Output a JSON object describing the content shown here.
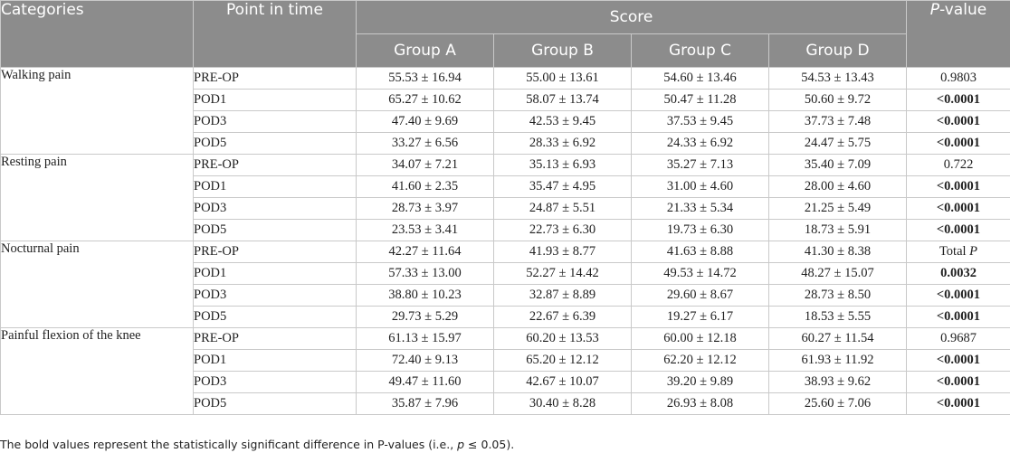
{
  "header": {
    "categories": "Categories",
    "point_in_time": "Point in time",
    "score": "Score",
    "p_value_prefix": "P",
    "p_value_suffix": "-value",
    "groups": [
      "Group A",
      "Group B",
      "Group C",
      "Group D"
    ]
  },
  "sections": [
    {
      "category": "Walking pain",
      "rows": [
        {
          "time": "PRE-OP",
          "a": "55.53 ± 16.94",
          "b": "55.00 ± 13.61",
          "c": "54.60 ± 13.46",
          "d": "54.53 ± 13.43",
          "p": "0.9803",
          "sig": false
        },
        {
          "time": "POD1",
          "a": "65.27 ± 10.62",
          "b": "58.07 ± 13.74",
          "c": "50.47 ± 11.28",
          "d": "50.60 ± 9.72",
          "p": "<0.0001",
          "sig": true
        },
        {
          "time": "POD3",
          "a": "47.40 ± 9.69",
          "b": "42.53 ± 9.45",
          "c": "37.53 ± 9.45",
          "d": "37.73 ± 7.48",
          "p": "<0.0001",
          "sig": true
        },
        {
          "time": "POD5",
          "a": "33.27 ± 6.56",
          "b": "28.33 ± 6.92",
          "c": "24.33 ± 6.92",
          "d": "24.47 ± 5.75",
          "p": "<0.0001",
          "sig": true
        }
      ]
    },
    {
      "category": "Resting pain",
      "rows": [
        {
          "time": "PRE-OP",
          "a": "34.07 ± 7.21",
          "b": "35.13 ± 6.93",
          "c": "35.27 ± 7.13",
          "d": "35.40 ± 7.09",
          "p": "0.722",
          "sig": false
        },
        {
          "time": "POD1",
          "a": "41.60 ± 2.35",
          "b": "35.47 ± 4.95",
          "c": "31.00 ± 4.60",
          "d": "28.00 ± 4.60",
          "p": "<0.0001",
          "sig": true
        },
        {
          "time": "POD3",
          "a": "28.73 ± 3.97",
          "b": "24.87 ± 5.51",
          "c": "21.33 ± 5.34",
          "d": "21.25 ± 5.49",
          "p": "<0.0001",
          "sig": true
        },
        {
          "time": "POD5",
          "a": "23.53 ± 3.41",
          "b": "22.73 ± 6.30",
          "c": "19.73 ± 6.30",
          "d": "18.73 ± 5.91",
          "p": "<0.0001",
          "sig": true
        }
      ]
    },
    {
      "category": "Nocturnal pain",
      "rows": [
        {
          "time": "PRE-OP",
          "a": "42.27 ± 11.64",
          "b": "41.93 ± 8.77",
          "c": "41.63 ± 8.88",
          "d": "41.30 ± 8.38",
          "p_prefix": "Total ",
          "p": "P",
          "p_italic": true,
          "sig": false
        },
        {
          "time": "POD1",
          "a": "57.33 ± 13.00",
          "b": "52.27 ± 14.42",
          "c": "49.53 ± 14.72",
          "d": "48.27 ± 15.07",
          "p": "0.0032",
          "sig": true
        },
        {
          "time": "POD3",
          "a": "38.80 ± 10.23",
          "b": "32.87 ± 8.89",
          "c": "29.60 ± 8.67",
          "d": "28.73 ± 8.50",
          "p": "<0.0001",
          "sig": true
        },
        {
          "time": "POD5",
          "a": "29.73 ± 5.29",
          "b": "22.67 ± 6.39",
          "c": "19.27 ± 6.17",
          "d": "18.53 ± 5.55",
          "p": "<0.0001",
          "sig": true
        }
      ]
    },
    {
      "category": "Painful flexion of the knee",
      "rows": [
        {
          "time": "PRE-OP",
          "a": "61.13 ± 15.97",
          "b": "60.20 ± 13.53",
          "c": "60.00 ± 12.18",
          "d": "60.27 ± 11.54",
          "p": "0.9687",
          "sig": false
        },
        {
          "time": "POD1",
          "a": "72.40 ± 9.13",
          "b": "65.20 ± 12.12",
          "c": "62.20 ± 12.12",
          "d": "61.93 ± 11.92",
          "p": "<0.0001",
          "sig": true
        },
        {
          "time": "POD3",
          "a": "49.47 ± 11.60",
          "b": "42.67 ± 10.07",
          "c": "39.20 ± 9.89",
          "d": "38.93 ± 9.62",
          "p": "<0.0001",
          "sig": true
        },
        {
          "time": "POD5",
          "a": "35.87 ± 7.96",
          "b": "30.40 ± 8.28",
          "c": "26.93 ± 8.08",
          "d": "25.60 ± 7.06",
          "p": "<0.0001",
          "sig": true
        }
      ]
    }
  ],
  "footnote": {
    "before": "The bold values represent the statistically significant difference in P-values (i.e., ",
    "italic": "p",
    "after": " ≤ 0.05)."
  }
}
